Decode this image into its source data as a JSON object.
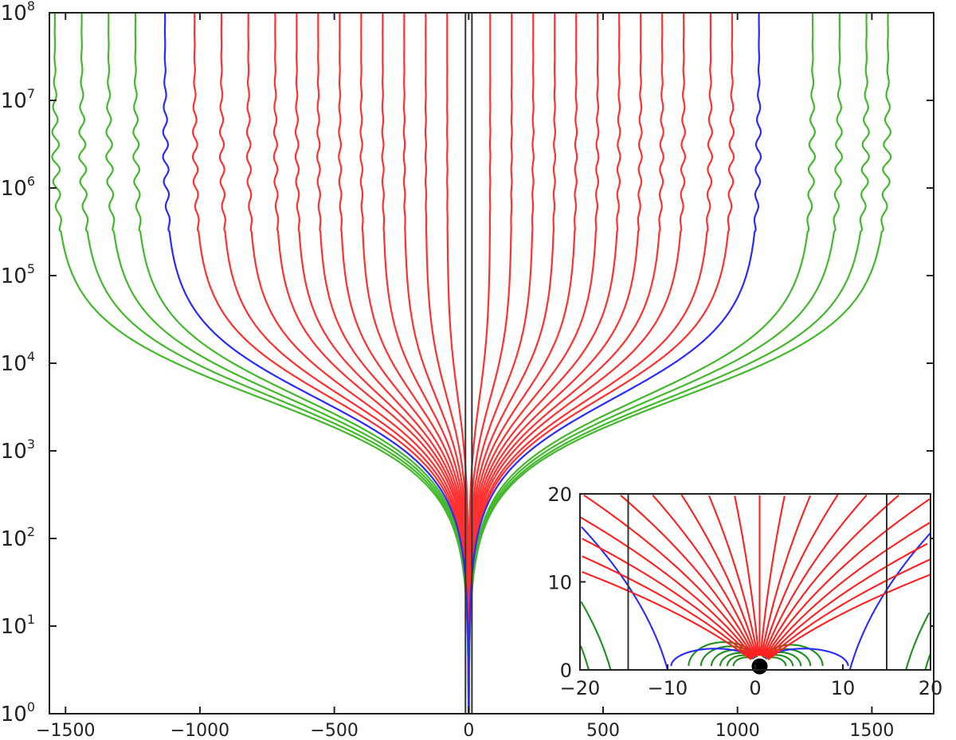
{
  "chart_data": [
    {
      "type": "line",
      "title": "",
      "xlabel": "",
      "ylabel": "",
      "xlim": [
        -1560,
        1730
      ],
      "ylim_log10": [
        0,
        8
      ],
      "yscale": "log",
      "grid": false,
      "legend": "none",
      "x_ticks": [
        {
          "value": -1500,
          "label": "−1500"
        },
        {
          "value": -1000,
          "label": "−1000"
        },
        {
          "value": -500,
          "label": "−500"
        },
        {
          "value": 0,
          "label": "0"
        },
        {
          "value": 500,
          "label": "500"
        },
        {
          "value": 1000,
          "label": "1000"
        },
        {
          "value": 1500,
          "label": "1500"
        }
      ],
      "y_ticks": [
        {
          "value": 1,
          "base": "10",
          "exp": "0"
        },
        {
          "value": 10,
          "base": "10",
          "exp": "1"
        },
        {
          "value": 100,
          "base": "10",
          "exp": "2"
        },
        {
          "value": 1000,
          "base": "10",
          "exp": "3"
        },
        {
          "value": 10000,
          "base": "10",
          "exp": "4"
        },
        {
          "value": 100000,
          "base": "10",
          "exp": "5"
        },
        {
          "value": 1000000,
          "base": "10",
          "exp": "6"
        },
        {
          "value": 10000000,
          "base": "10",
          "exp": "7"
        },
        {
          "value": 100000000,
          "base": "10",
          "exp": "8"
        }
      ],
      "colors": {
        "red": "#ff3030",
        "blue": "#2a2aff",
        "green": "#44b82c",
        "boundary": "#333333"
      },
      "vertical_lines_x": [
        -12,
        12
      ],
      "series": [
        {
          "color": "blue",
          "x_top": -1130
        },
        {
          "color": "blue",
          "x_top": 1080
        },
        {
          "color": "green",
          "x_top": -1540
        },
        {
          "color": "green",
          "x_top": -1440
        },
        {
          "color": "green",
          "x_top": -1340
        },
        {
          "color": "green",
          "x_top": -1240
        },
        {
          "color": "green",
          "x_top": 1280
        },
        {
          "color": "green",
          "x_top": 1380
        },
        {
          "color": "green",
          "x_top": 1480
        },
        {
          "color": "green",
          "x_top": 1560
        },
        {
          "color": "red",
          "x_top": -1020
        },
        {
          "color": "red",
          "x_top": -920
        },
        {
          "color": "red",
          "x_top": -820
        },
        {
          "color": "red",
          "x_top": -720
        },
        {
          "color": "red",
          "x_top": -640
        },
        {
          "color": "red",
          "x_top": -560
        },
        {
          "color": "red",
          "x_top": -480
        },
        {
          "color": "red",
          "x_top": -400
        },
        {
          "color": "red",
          "x_top": -320
        },
        {
          "color": "red",
          "x_top": -240
        },
        {
          "color": "red",
          "x_top": -160
        },
        {
          "color": "red",
          "x_top": -80
        },
        {
          "color": "red",
          "x_top": 80
        },
        {
          "color": "red",
          "x_top": 160
        },
        {
          "color": "red",
          "x_top": 240
        },
        {
          "color": "red",
          "x_top": 320
        },
        {
          "color": "red",
          "x_top": 400
        },
        {
          "color": "red",
          "x_top": 480
        },
        {
          "color": "red",
          "x_top": 560
        },
        {
          "color": "red",
          "x_top": 640
        },
        {
          "color": "red",
          "x_top": 720
        },
        {
          "color": "red",
          "x_top": 800
        },
        {
          "color": "red",
          "x_top": 900
        },
        {
          "color": "red",
          "x_top": 980
        }
      ]
    },
    {
      "type": "line",
      "title": "",
      "xlabel": "",
      "ylabel": "",
      "xlim": [
        -20,
        20
      ],
      "ylim": [
        0,
        20
      ],
      "grid": false,
      "legend": "none",
      "x_ticks": [
        {
          "value": -20,
          "label": "−20"
        },
        {
          "value": -10,
          "label": "−10"
        },
        {
          "value": 0,
          "label": "0"
        },
        {
          "value": 10,
          "label": "10"
        },
        {
          "value": 20,
          "label": "20"
        }
      ],
      "y_ticks": [
        {
          "value": 0,
          "label": "0"
        },
        {
          "value": 10,
          "label": "10"
        },
        {
          "value": 20,
          "label": "20"
        }
      ],
      "colors": {
        "red": "#ff2020",
        "blue": "#2a2aff",
        "green": "#1f8f1f",
        "boundary": "#333333",
        "center": "#000000"
      },
      "vertical_lines_x": [
        -14.5,
        15
      ],
      "center_x": 0.5,
      "center_y": 0.4,
      "center_radius": 1,
      "red_angles_deg": [
        40,
        45,
        50,
        55,
        60,
        65,
        70,
        75,
        80,
        85,
        90,
        95,
        100,
        105,
        110,
        115,
        120,
        125,
        130,
        135,
        140
      ],
      "blue_loop_x": [
        -9.6,
        10.6
      ],
      "green_loops_x": [
        -7.6,
        -6.2,
        -5,
        -4,
        -3.2,
        -2.5,
        3.5,
        4.3,
        5.2,
        6.3,
        7.7
      ],
      "outer_blue_x": [
        -20,
        20
      ],
      "outer_green_x": [
        -20,
        -19,
        18.5,
        19.5
      ]
    }
  ]
}
